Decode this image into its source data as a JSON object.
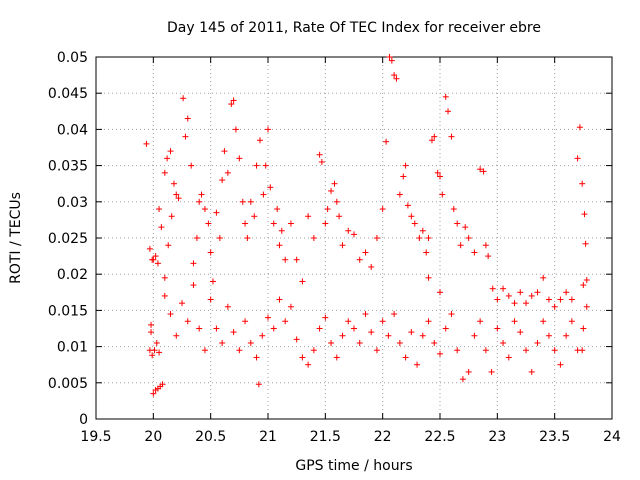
{
  "chart_data": {
    "type": "scatter",
    "title": "Day 145 of 2011, Rate Of TEC Index for receiver ebre",
    "xlabel": "GPS time / hours",
    "ylabel": "ROTI / TECUs",
    "xlim": [
      19.5,
      24
    ],
    "ylim": [
      0,
      0.05
    ],
    "xticks": [
      19.5,
      20,
      20.5,
      21,
      21.5,
      22,
      22.5,
      23,
      23.5,
      24
    ],
    "yticks": [
      0,
      0.005,
      0.01,
      0.015,
      0.02,
      0.025,
      0.03,
      0.035,
      0.04,
      0.045,
      0.05
    ],
    "xtick_labels": [
      "19.5",
      "20",
      "20.5",
      "21",
      "21.5",
      "22",
      "22.5",
      "23",
      "23.5",
      "24"
    ],
    "ytick_labels": [
      "0",
      "0.005",
      "0.01",
      "0.015",
      "0.02",
      "0.025",
      "0.03",
      "0.035",
      "0.04",
      "0.045",
      "0.05"
    ],
    "grid": true,
    "marker": "+",
    "series_color": "#ff0000",
    "series": [
      {
        "name": "ebre",
        "points": [
          [
            19.94,
            0.038
          ],
          [
            19.97,
            0.0235
          ],
          [
            19.99,
            0.022
          ],
          [
            20.0,
            0.022
          ],
          [
            20.02,
            0.0225
          ],
          [
            20.04,
            0.0215
          ],
          [
            19.98,
            0.012
          ],
          [
            19.97,
            0.0095
          ],
          [
            19.99,
            0.0088
          ],
          [
            20.01,
            0.0095
          ],
          [
            20.03,
            0.0105
          ],
          [
            20.05,
            0.0092
          ],
          [
            20.0,
            0.0035
          ],
          [
            20.02,
            0.004
          ],
          [
            20.04,
            0.0042
          ],
          [
            20.06,
            0.0045
          ],
          [
            20.08,
            0.0048
          ],
          [
            19.98,
            0.013
          ],
          [
            20.05,
            0.029
          ],
          [
            20.07,
            0.0265
          ],
          [
            20.1,
            0.034
          ],
          [
            20.12,
            0.036
          ],
          [
            20.15,
            0.037
          ],
          [
            20.18,
            0.0325
          ],
          [
            20.1,
            0.0195
          ],
          [
            20.13,
            0.024
          ],
          [
            20.16,
            0.028
          ],
          [
            20.2,
            0.031
          ],
          [
            20.22,
            0.0305
          ],
          [
            20.26,
            0.0443
          ],
          [
            20.28,
            0.039
          ],
          [
            20.3,
            0.0415
          ],
          [
            20.33,
            0.035
          ],
          [
            20.35,
            0.0215
          ],
          [
            20.38,
            0.025
          ],
          [
            20.4,
            0.03
          ],
          [
            20.42,
            0.031
          ],
          [
            20.45,
            0.029
          ],
          [
            20.48,
            0.027
          ],
          [
            20.5,
            0.023
          ],
          [
            20.52,
            0.019
          ],
          [
            20.55,
            0.0285
          ],
          [
            20.58,
            0.025
          ],
          [
            20.6,
            0.033
          ],
          [
            20.62,
            0.037
          ],
          [
            20.65,
            0.034
          ],
          [
            20.68,
            0.0435
          ],
          [
            20.7,
            0.044
          ],
          [
            20.72,
            0.04
          ],
          [
            20.75,
            0.036
          ],
          [
            20.78,
            0.03
          ],
          [
            20.8,
            0.027
          ],
          [
            20.82,
            0.025
          ],
          [
            20.85,
            0.03
          ],
          [
            20.88,
            0.028
          ],
          [
            20.9,
            0.035
          ],
          [
            20.93,
            0.0385
          ],
          [
            20.96,
            0.031
          ],
          [
            20.98,
            0.035
          ],
          [
            21.0,
            0.04
          ],
          [
            21.02,
            0.032
          ],
          [
            21.05,
            0.027
          ],
          [
            21.08,
            0.029
          ],
          [
            21.1,
            0.024
          ],
          [
            21.12,
            0.026
          ],
          [
            21.15,
            0.022
          ],
          [
            21.2,
            0.027
          ],
          [
            21.25,
            0.022
          ],
          [
            21.3,
            0.019
          ],
          [
            21.35,
            0.028
          ],
          [
            21.4,
            0.025
          ],
          [
            21.45,
            0.0365
          ],
          [
            21.47,
            0.0355
          ],
          [
            21.5,
            0.027
          ],
          [
            21.52,
            0.029
          ],
          [
            21.55,
            0.0315
          ],
          [
            21.58,
            0.0325
          ],
          [
            21.6,
            0.03
          ],
          [
            21.62,
            0.028
          ],
          [
            21.65,
            0.024
          ],
          [
            21.7,
            0.026
          ],
          [
            21.75,
            0.0255
          ],
          [
            21.8,
            0.022
          ],
          [
            21.85,
            0.023
          ],
          [
            21.9,
            0.021
          ],
          [
            21.95,
            0.025
          ],
          [
            22.0,
            0.029
          ],
          [
            22.03,
            0.0383
          ],
          [
            22.06,
            0.05
          ],
          [
            22.08,
            0.0495
          ],
          [
            22.1,
            0.0475
          ],
          [
            22.12,
            0.047
          ],
          [
            22.15,
            0.031
          ],
          [
            22.18,
            0.0335
          ],
          [
            22.2,
            0.035
          ],
          [
            22.22,
            0.0295
          ],
          [
            22.25,
            0.028
          ],
          [
            22.28,
            0.027
          ],
          [
            22.32,
            0.025
          ],
          [
            22.35,
            0.026
          ],
          [
            22.38,
            0.023
          ],
          [
            22.4,
            0.025
          ],
          [
            22.43,
            0.0385
          ],
          [
            22.45,
            0.039
          ],
          [
            22.48,
            0.034
          ],
          [
            22.5,
            0.0335
          ],
          [
            22.52,
            0.031
          ],
          [
            22.55,
            0.0445
          ],
          [
            22.57,
            0.0425
          ],
          [
            22.6,
            0.039
          ],
          [
            22.62,
            0.029
          ],
          [
            22.65,
            0.027
          ],
          [
            22.68,
            0.024
          ],
          [
            22.72,
            0.0265
          ],
          [
            22.75,
            0.025
          ],
          [
            22.8,
            0.023
          ],
          [
            22.85,
            0.0345
          ],
          [
            22.88,
            0.0342
          ],
          [
            22.9,
            0.024
          ],
          [
            22.92,
            0.0225
          ],
          [
            22.96,
            0.018
          ],
          [
            23.0,
            0.0165
          ],
          [
            23.05,
            0.018
          ],
          [
            23.1,
            0.017
          ],
          [
            23.15,
            0.016
          ],
          [
            23.2,
            0.0175
          ],
          [
            23.25,
            0.016
          ],
          [
            23.3,
            0.017
          ],
          [
            23.35,
            0.0175
          ],
          [
            23.4,
            0.0195
          ],
          [
            23.45,
            0.0165
          ],
          [
            23.5,
            0.0155
          ],
          [
            23.55,
            0.0165
          ],
          [
            23.6,
            0.0175
          ],
          [
            23.65,
            0.0165
          ],
          [
            23.7,
            0.036
          ],
          [
            23.72,
            0.0403
          ],
          [
            23.74,
            0.0325
          ],
          [
            23.76,
            0.0283
          ],
          [
            23.77,
            0.0242
          ],
          [
            23.78,
            0.0192
          ],
          [
            23.75,
            0.0185
          ],
          [
            23.74,
            0.0095
          ],
          [
            20.1,
            0.017
          ],
          [
            20.15,
            0.0145
          ],
          [
            20.2,
            0.0115
          ],
          [
            20.25,
            0.016
          ],
          [
            20.3,
            0.0135
          ],
          [
            20.35,
            0.0185
          ],
          [
            20.4,
            0.0125
          ],
          [
            20.45,
            0.0095
          ],
          [
            20.5,
            0.0165
          ],
          [
            20.55,
            0.0125
          ],
          [
            20.6,
            0.0105
          ],
          [
            20.65,
            0.0155
          ],
          [
            20.7,
            0.012
          ],
          [
            20.75,
            0.0095
          ],
          [
            20.8,
            0.0135
          ],
          [
            20.85,
            0.0105
          ],
          [
            20.9,
            0.0085
          ],
          [
            20.92,
            0.0048
          ],
          [
            20.95,
            0.0115
          ],
          [
            21.0,
            0.014
          ],
          [
            21.05,
            0.0125
          ],
          [
            21.1,
            0.0165
          ],
          [
            21.15,
            0.0135
          ],
          [
            21.2,
            0.0155
          ],
          [
            21.25,
            0.011
          ],
          [
            21.3,
            0.0085
          ],
          [
            21.35,
            0.0075
          ],
          [
            21.4,
            0.0095
          ],
          [
            21.45,
            0.0125
          ],
          [
            21.5,
            0.014
          ],
          [
            21.55,
            0.0105
          ],
          [
            21.6,
            0.0085
          ],
          [
            21.65,
            0.0115
          ],
          [
            21.7,
            0.0135
          ],
          [
            21.75,
            0.0125
          ],
          [
            21.8,
            0.0105
          ],
          [
            21.85,
            0.0145
          ],
          [
            21.9,
            0.012
          ],
          [
            21.95,
            0.0095
          ],
          [
            22.0,
            0.0135
          ],
          [
            22.05,
            0.0115
          ],
          [
            22.1,
            0.0145
          ],
          [
            22.15,
            0.0105
          ],
          [
            22.2,
            0.0085
          ],
          [
            22.25,
            0.012
          ],
          [
            22.3,
            0.0075
          ],
          [
            22.35,
            0.0115
          ],
          [
            22.4,
            0.0135
          ],
          [
            22.45,
            0.0105
          ],
          [
            22.5,
            0.009
          ],
          [
            22.55,
            0.0125
          ],
          [
            22.6,
            0.0145
          ],
          [
            22.65,
            0.0095
          ],
          [
            22.7,
            0.0055
          ],
          [
            22.75,
            0.0065
          ],
          [
            22.8,
            0.0115
          ],
          [
            22.85,
            0.0135
          ],
          [
            22.9,
            0.0095
          ],
          [
            22.95,
            0.0065
          ],
          [
            23.0,
            0.0125
          ],
          [
            23.05,
            0.0105
          ],
          [
            23.1,
            0.0085
          ],
          [
            23.15,
            0.0135
          ],
          [
            23.2,
            0.012
          ],
          [
            23.25,
            0.0095
          ],
          [
            23.3,
            0.0065
          ],
          [
            23.35,
            0.0105
          ],
          [
            23.4,
            0.0135
          ],
          [
            23.45,
            0.0115
          ],
          [
            23.5,
            0.0095
          ],
          [
            23.55,
            0.0075
          ],
          [
            23.6,
            0.0115
          ],
          [
            23.65,
            0.0135
          ],
          [
            23.7,
            0.0095
          ],
          [
            23.75,
            0.0125
          ],
          [
            23.78,
            0.0155
          ],
          [
            22.4,
            0.0195
          ],
          [
            22.5,
            0.0175
          ]
        ]
      }
    ]
  }
}
